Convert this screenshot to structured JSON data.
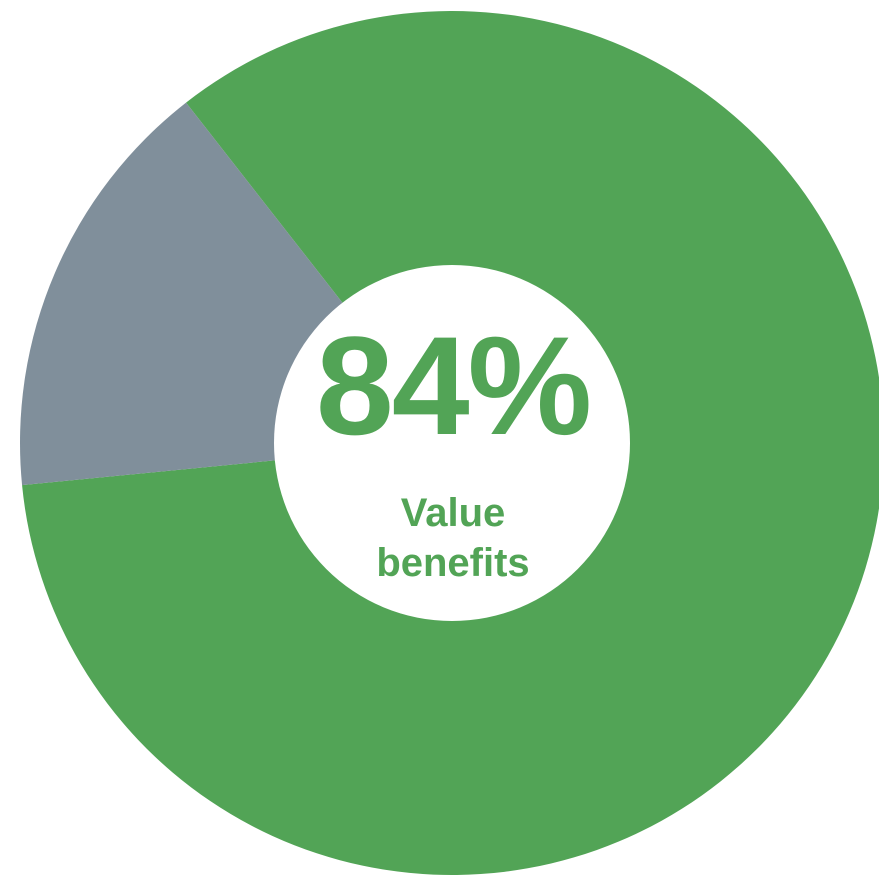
{
  "chart_data": {
    "type": "pie",
    "style": "donut",
    "slices": [
      {
        "label": "Value benefits",
        "value": 84,
        "color": "#52a456"
      },
      {
        "label": "",
        "value": 16,
        "color": "#808f9b"
      }
    ],
    "center_value": "84%",
    "center_caption_line1": "Value",
    "center_caption_line2": "benefits",
    "accent_color": "#52a456",
    "background_color": "#ffffff"
  }
}
